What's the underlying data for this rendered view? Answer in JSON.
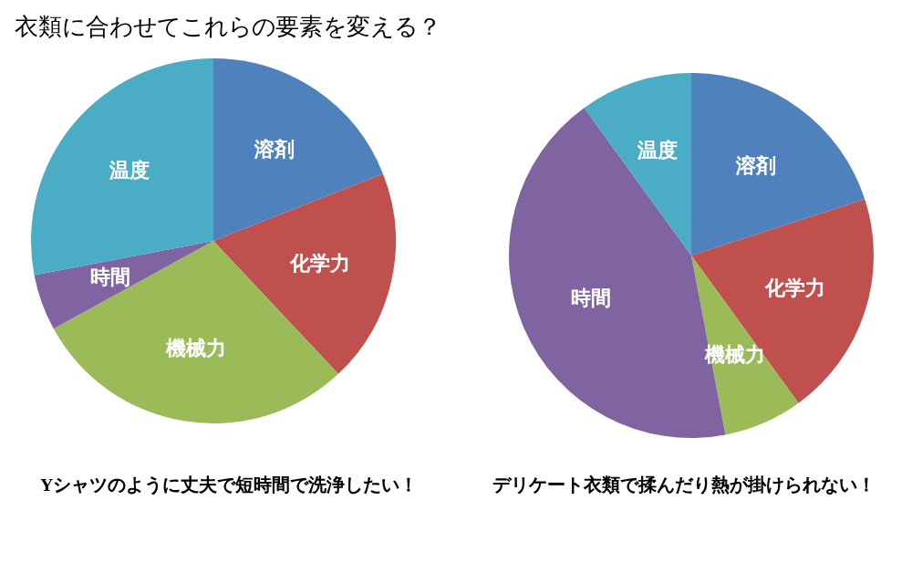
{
  "chart_data": [
    {
      "type": "pie",
      "title": "衣類に合わせてこれらの要素を変える？",
      "categories": [
        "溶剤",
        "化学力",
        "機械力",
        "時間",
        "温度"
      ],
      "values": [
        19,
        19,
        29,
        5,
        28
      ],
      "colors": [
        "#4f81bd",
        "#c0504d",
        "#9bbb59",
        "#8064a2",
        "#4bacc6"
      ],
      "annotations": [
        "Yシャツのように丈夫で短時間で洗浄したい！"
      ]
    },
    {
      "type": "pie",
      "categories": [
        "溶剤",
        "化学力",
        "機械力",
        "時間",
        "温度"
      ],
      "values": [
        20,
        20,
        7,
        43,
        10
      ],
      "colors": [
        "#4f81bd",
        "#c0504d",
        "#9bbb59",
        "#8064a2",
        "#4bacc6"
      ],
      "annotations": [
        "デリケート衣類で揉んだり熱が掛けられない！"
      ]
    }
  ]
}
